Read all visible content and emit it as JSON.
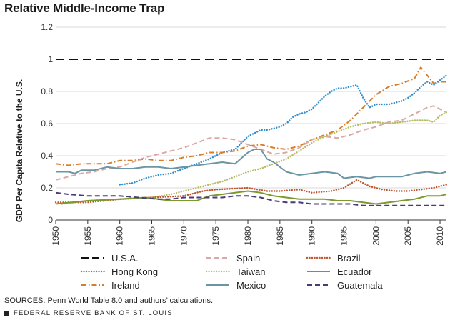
{
  "chart_data": {
    "type": "line",
    "title": "Relative Middle-Income Trap",
    "xlabel": "",
    "ylabel": "GDP Per Capita Relative to the U.S.",
    "xlim": [
      1950,
      2011
    ],
    "ylim": [
      0,
      1.2
    ],
    "x_ticks": [
      "1950",
      "1955",
      "1960",
      "1965",
      "1970",
      "1975",
      "1980",
      "1985",
      "1990",
      "1995",
      "2000",
      "2005",
      "2010"
    ],
    "y_ticks": [
      "0",
      "0.2",
      "0.4",
      "0.6",
      "0.8",
      "1",
      "1.2"
    ],
    "grid": "horizontal",
    "legend_position": "bottom",
    "series": [
      {
        "name": "U.S.A.",
        "color": "#111111",
        "style": "dashed",
        "points": [
          [
            1950,
            1.0
          ],
          [
            2011,
            1.0
          ]
        ]
      },
      {
        "name": "Hong Kong",
        "color": "#2f8fcf",
        "style": "dotted",
        "points": [
          [
            1960,
            0.22
          ],
          [
            1962,
            0.23
          ],
          [
            1964,
            0.26
          ],
          [
            1966,
            0.28
          ],
          [
            1968,
            0.29
          ],
          [
            1970,
            0.32
          ],
          [
            1972,
            0.35
          ],
          [
            1974,
            0.38
          ],
          [
            1976,
            0.42
          ],
          [
            1978,
            0.44
          ],
          [
            1979,
            0.48
          ],
          [
            1980,
            0.52
          ],
          [
            1981,
            0.54
          ],
          [
            1982,
            0.56
          ],
          [
            1983,
            0.56
          ],
          [
            1984,
            0.57
          ],
          [
            1985,
            0.58
          ],
          [
            1986,
            0.6
          ],
          [
            1987,
            0.64
          ],
          [
            1988,
            0.66
          ],
          [
            1989,
            0.67
          ],
          [
            1990,
            0.69
          ],
          [
            1991,
            0.73
          ],
          [
            1992,
            0.77
          ],
          [
            1993,
            0.8
          ],
          [
            1994,
            0.82
          ],
          [
            1995,
            0.82
          ],
          [
            1996,
            0.83
          ],
          [
            1997,
            0.84
          ],
          [
            1998,
            0.76
          ],
          [
            1999,
            0.7
          ],
          [
            2000,
            0.72
          ],
          [
            2001,
            0.72
          ],
          [
            2002,
            0.72
          ],
          [
            2003,
            0.73
          ],
          [
            2004,
            0.74
          ],
          [
            2005,
            0.76
          ],
          [
            2006,
            0.79
          ],
          [
            2007,
            0.83
          ],
          [
            2008,
            0.86
          ],
          [
            2009,
            0.84
          ],
          [
            2010,
            0.87
          ],
          [
            2011,
            0.9
          ]
        ]
      },
      {
        "name": "Ireland",
        "color": "#d97d2a",
        "style": "dashdot",
        "points": [
          [
            1950,
            0.35
          ],
          [
            1952,
            0.34
          ],
          [
            1954,
            0.35
          ],
          [
            1956,
            0.35
          ],
          [
            1958,
            0.35
          ],
          [
            1960,
            0.37
          ],
          [
            1962,
            0.37
          ],
          [
            1964,
            0.38
          ],
          [
            1966,
            0.37
          ],
          [
            1968,
            0.37
          ],
          [
            1970,
            0.39
          ],
          [
            1972,
            0.4
          ],
          [
            1974,
            0.42
          ],
          [
            1976,
            0.42
          ],
          [
            1978,
            0.43
          ],
          [
            1980,
            0.46
          ],
          [
            1982,
            0.47
          ],
          [
            1984,
            0.45
          ],
          [
            1986,
            0.44
          ],
          [
            1988,
            0.46
          ],
          [
            1990,
            0.5
          ],
          [
            1992,
            0.53
          ],
          [
            1994,
            0.56
          ],
          [
            1996,
            0.62
          ],
          [
            1998,
            0.7
          ],
          [
            2000,
            0.78
          ],
          [
            2002,
            0.83
          ],
          [
            2004,
            0.85
          ],
          [
            2006,
            0.88
          ],
          [
            2007,
            0.95
          ],
          [
            2008,
            0.9
          ],
          [
            2009,
            0.85
          ],
          [
            2010,
            0.86
          ],
          [
            2011,
            0.86
          ]
        ]
      },
      {
        "name": "Spain",
        "color": "#d9a8a5",
        "style": "dashed",
        "points": [
          [
            1950,
            0.25
          ],
          [
            1952,
            0.27
          ],
          [
            1954,
            0.29
          ],
          [
            1956,
            0.3
          ],
          [
            1958,
            0.32
          ],
          [
            1960,
            0.33
          ],
          [
            1962,
            0.36
          ],
          [
            1964,
            0.39
          ],
          [
            1966,
            0.41
          ],
          [
            1968,
            0.43
          ],
          [
            1970,
            0.45
          ],
          [
            1972,
            0.48
          ],
          [
            1974,
            0.51
          ],
          [
            1976,
            0.51
          ],
          [
            1978,
            0.5
          ],
          [
            1980,
            0.47
          ],
          [
            1982,
            0.44
          ],
          [
            1984,
            0.41
          ],
          [
            1986,
            0.42
          ],
          [
            1988,
            0.45
          ],
          [
            1990,
            0.5
          ],
          [
            1992,
            0.52
          ],
          [
            1994,
            0.51
          ],
          [
            1996,
            0.53
          ],
          [
            1998,
            0.56
          ],
          [
            2000,
            0.58
          ],
          [
            2002,
            0.61
          ],
          [
            2004,
            0.62
          ],
          [
            2006,
            0.66
          ],
          [
            2008,
            0.7
          ],
          [
            2009,
            0.71
          ],
          [
            2010,
            0.69
          ],
          [
            2011,
            0.67
          ]
        ]
      },
      {
        "name": "Taiwan",
        "color": "#b7bd63",
        "style": "dotted",
        "points": [
          [
            1951,
            0.1
          ],
          [
            1955,
            0.12
          ],
          [
            1960,
            0.13
          ],
          [
            1965,
            0.14
          ],
          [
            1968,
            0.16
          ],
          [
            1970,
            0.18
          ],
          [
            1972,
            0.2
          ],
          [
            1974,
            0.22
          ],
          [
            1976,
            0.24
          ],
          [
            1978,
            0.27
          ],
          [
            1980,
            0.3
          ],
          [
            1982,
            0.32
          ],
          [
            1984,
            0.35
          ],
          [
            1986,
            0.38
          ],
          [
            1988,
            0.43
          ],
          [
            1990,
            0.48
          ],
          [
            1992,
            0.52
          ],
          [
            1994,
            0.55
          ],
          [
            1996,
            0.58
          ],
          [
            1998,
            0.6
          ],
          [
            2000,
            0.61
          ],
          [
            2002,
            0.6
          ],
          [
            2004,
            0.61
          ],
          [
            2006,
            0.62
          ],
          [
            2008,
            0.62
          ],
          [
            2009,
            0.61
          ],
          [
            2010,
            0.65
          ],
          [
            2011,
            0.67
          ]
        ]
      },
      {
        "name": "Brazil",
        "color": "#c0552f",
        "style": "dotted",
        "points": [
          [
            1950,
            0.11
          ],
          [
            1955,
            0.11
          ],
          [
            1960,
            0.13
          ],
          [
            1965,
            0.14
          ],
          [
            1970,
            0.15
          ],
          [
            1973,
            0.18
          ],
          [
            1975,
            0.19
          ],
          [
            1980,
            0.2
          ],
          [
            1983,
            0.18
          ],
          [
            1985,
            0.18
          ],
          [
            1988,
            0.19
          ],
          [
            1990,
            0.17
          ],
          [
            1993,
            0.18
          ],
          [
            1995,
            0.2
          ],
          [
            1997,
            0.25
          ],
          [
            1999,
            0.21
          ],
          [
            2001,
            0.19
          ],
          [
            2003,
            0.18
          ],
          [
            2005,
            0.18
          ],
          [
            2007,
            0.19
          ],
          [
            2009,
            0.2
          ],
          [
            2011,
            0.22
          ]
        ]
      },
      {
        "name": "Mexico",
        "color": "#6b95a3",
        "style": "solid",
        "points": [
          [
            1950,
            0.3
          ],
          [
            1952,
            0.3
          ],
          [
            1953,
            0.29
          ],
          [
            1954,
            0.31
          ],
          [
            1956,
            0.31
          ],
          [
            1958,
            0.33
          ],
          [
            1960,
            0.32
          ],
          [
            1962,
            0.32
          ],
          [
            1964,
            0.33
          ],
          [
            1966,
            0.33
          ],
          [
            1968,
            0.32
          ],
          [
            1970,
            0.33
          ],
          [
            1972,
            0.34
          ],
          [
            1974,
            0.35
          ],
          [
            1976,
            0.36
          ],
          [
            1978,
            0.35
          ],
          [
            1980,
            0.42
          ],
          [
            1981,
            0.44
          ],
          [
            1982,
            0.44
          ],
          [
            1983,
            0.38
          ],
          [
            1984,
            0.36
          ],
          [
            1985,
            0.33
          ],
          [
            1986,
            0.3
          ],
          [
            1988,
            0.28
          ],
          [
            1990,
            0.29
          ],
          [
            1992,
            0.3
          ],
          [
            1994,
            0.29
          ],
          [
            1995,
            0.26
          ],
          [
            1997,
            0.27
          ],
          [
            1999,
            0.26
          ],
          [
            2000,
            0.27
          ],
          [
            2002,
            0.27
          ],
          [
            2004,
            0.27
          ],
          [
            2006,
            0.29
          ],
          [
            2008,
            0.3
          ],
          [
            2010,
            0.29
          ],
          [
            2011,
            0.3
          ]
        ]
      },
      {
        "name": "Ecuador",
        "color": "#7a9a2e",
        "style": "solid",
        "points": [
          [
            1950,
            0.1
          ],
          [
            1955,
            0.12
          ],
          [
            1960,
            0.13
          ],
          [
            1964,
            0.14
          ],
          [
            1966,
            0.13
          ],
          [
            1968,
            0.12
          ],
          [
            1970,
            0.12
          ],
          [
            1972,
            0.12
          ],
          [
            1974,
            0.15
          ],
          [
            1976,
            0.16
          ],
          [
            1978,
            0.17
          ],
          [
            1980,
            0.18
          ],
          [
            1982,
            0.17
          ],
          [
            1984,
            0.15
          ],
          [
            1986,
            0.14
          ],
          [
            1988,
            0.13
          ],
          [
            1990,
            0.13
          ],
          [
            1992,
            0.13
          ],
          [
            1994,
            0.12
          ],
          [
            1996,
            0.12
          ],
          [
            1998,
            0.11
          ],
          [
            2000,
            0.1
          ],
          [
            2002,
            0.11
          ],
          [
            2004,
            0.12
          ],
          [
            2006,
            0.13
          ],
          [
            2008,
            0.15
          ],
          [
            2010,
            0.15
          ],
          [
            2011,
            0.16
          ]
        ]
      },
      {
        "name": "Guatemala",
        "color": "#4b3a7a",
        "style": "dashed",
        "points": [
          [
            1950,
            0.17
          ],
          [
            1952,
            0.16
          ],
          [
            1955,
            0.15
          ],
          [
            1958,
            0.15
          ],
          [
            1960,
            0.15
          ],
          [
            1963,
            0.14
          ],
          [
            1966,
            0.13
          ],
          [
            1968,
            0.13
          ],
          [
            1970,
            0.14
          ],
          [
            1973,
            0.14
          ],
          [
            1976,
            0.14
          ],
          [
            1978,
            0.15
          ],
          [
            1980,
            0.15
          ],
          [
            1982,
            0.14
          ],
          [
            1984,
            0.12
          ],
          [
            1986,
            0.11
          ],
          [
            1988,
            0.11
          ],
          [
            1990,
            0.1
          ],
          [
            1992,
            0.1
          ],
          [
            1994,
            0.1
          ],
          [
            1996,
            0.1
          ],
          [
            1998,
            0.09
          ],
          [
            2000,
            0.09
          ],
          [
            2002,
            0.09
          ],
          [
            2004,
            0.09
          ],
          [
            2006,
            0.09
          ],
          [
            2008,
            0.09
          ],
          [
            2010,
            0.09
          ],
          [
            2011,
            0.09
          ]
        ]
      }
    ]
  },
  "legend_order": [
    "U.S.A.",
    "Spain",
    "Brazil",
    "Hong Kong",
    "Taiwan",
    "Ecuador",
    "Ireland",
    "Mexico",
    "Guatemala"
  ],
  "source_note": "SOURCES: Penn World Table 8.0 and authors’ calculations.",
  "footer": "FEDERAL RESERVE BANK OF ST. LOUIS"
}
